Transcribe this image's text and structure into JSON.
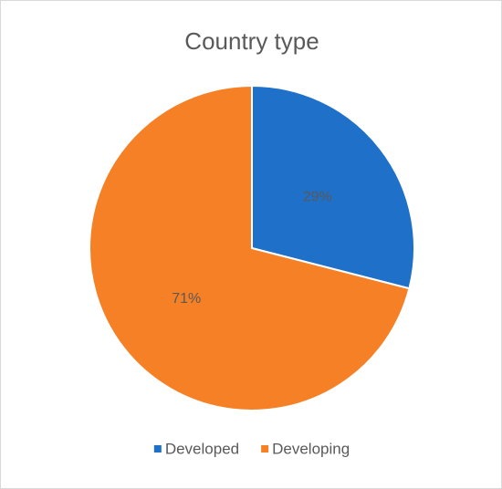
{
  "chart_data": {
    "type": "pie",
    "title": "Country type",
    "categories": [
      "Developed",
      "Developing"
    ],
    "values": [
      29,
      71
    ],
    "value_labels": [
      "29%",
      "71%"
    ],
    "colors": [
      "#1f70c8",
      "#f58025"
    ],
    "legend": "bottom"
  }
}
